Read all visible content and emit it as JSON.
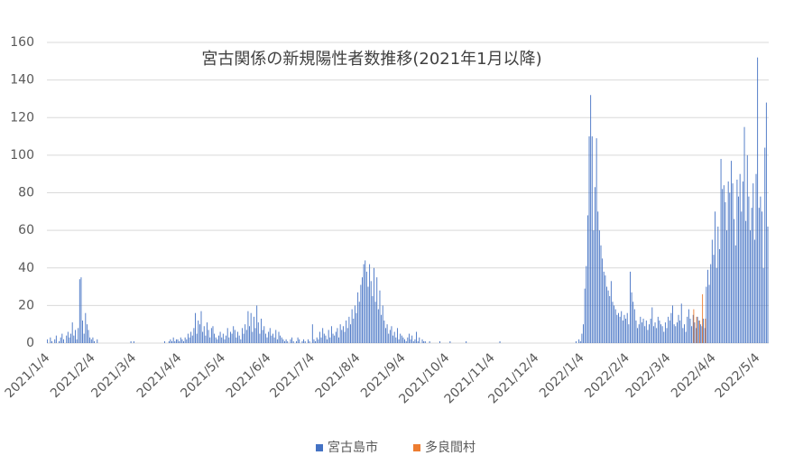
{
  "chart_data": {
    "type": "bar",
    "title": "宮古関係の新規陽性者数推移(2021年1月以降)",
    "categories": [
      "2021/1/4",
      null,
      null,
      null,
      null,
      null,
      null,
      null,
      null,
      null,
      null,
      null,
      null,
      null,
      null,
      null,
      null,
      null,
      null,
      null,
      null,
      null,
      null,
      null,
      null,
      null,
      null,
      null,
      null,
      null,
      null,
      "2021/2/4",
      null,
      null,
      null,
      null,
      null,
      null,
      null,
      null,
      null,
      null,
      null,
      null,
      null,
      null,
      null,
      null,
      null,
      null,
      null,
      null,
      null,
      null,
      null,
      null,
      null,
      null,
      null,
      "2021/3/4",
      null,
      null,
      null,
      null,
      null,
      null,
      null,
      null,
      null,
      null,
      null,
      null,
      null,
      null,
      null,
      null,
      null,
      null,
      null,
      null,
      null,
      null,
      null,
      null,
      null,
      null,
      null,
      null,
      null,
      null,
      "2021/4/4",
      null,
      null,
      null,
      null,
      null,
      null,
      null,
      null,
      null,
      null,
      null,
      null,
      null,
      null,
      null,
      null,
      null,
      null,
      null,
      null,
      null,
      null,
      null,
      null,
      null,
      null,
      null,
      null,
      null,
      "2021/5/4",
      null,
      null,
      null,
      null,
      null,
      null,
      null,
      null,
      null,
      null,
      null,
      null,
      null,
      null,
      null,
      null,
      null,
      null,
      null,
      null,
      null,
      null,
      null,
      null,
      null,
      null,
      null,
      null,
      null,
      null,
      "2021/6/4",
      null,
      null,
      null,
      null,
      null,
      null,
      null,
      null,
      null,
      null,
      null,
      null,
      null,
      null,
      null,
      null,
      null,
      null,
      null,
      null,
      null,
      null,
      null,
      null,
      null,
      null,
      null,
      null,
      null,
      "2021/7/4",
      null,
      null,
      null,
      null,
      null,
      null,
      null,
      null,
      null,
      null,
      null,
      null,
      null,
      null,
      null,
      null,
      null,
      null,
      null,
      null,
      null,
      null,
      null,
      null,
      null,
      null,
      null,
      null,
      null,
      null,
      "2021/8/4",
      null,
      null,
      null,
      null,
      null,
      null,
      null,
      null,
      null,
      null,
      null,
      null,
      null,
      null,
      null,
      null,
      null,
      null,
      null,
      null,
      null,
      null,
      null,
      null,
      null,
      null,
      null,
      null,
      null,
      null,
      "2021/9/4",
      null,
      null,
      null,
      null,
      null,
      null,
      null,
      null,
      null,
      null,
      null,
      null,
      null,
      null,
      null,
      null,
      null,
      null,
      null,
      null,
      null,
      null,
      null,
      null,
      null,
      null,
      null,
      null,
      null,
      "2021/10/4",
      null,
      null,
      null,
      null,
      null,
      null,
      null,
      null,
      null,
      null,
      null,
      null,
      null,
      null,
      null,
      null,
      null,
      null,
      null,
      null,
      null,
      null,
      null,
      null,
      null,
      null,
      null,
      null,
      null,
      null,
      "2021/11/4",
      null,
      null,
      null,
      null,
      null,
      null,
      null,
      null,
      null,
      null,
      null,
      null,
      null,
      null,
      null,
      null,
      null,
      null,
      null,
      null,
      null,
      null,
      null,
      null,
      null,
      null,
      null,
      null,
      null,
      "2021/12/4",
      null,
      null,
      null,
      null,
      null,
      null,
      null,
      null,
      null,
      null,
      null,
      null,
      null,
      null,
      null,
      null,
      null,
      null,
      null,
      null,
      null,
      null,
      null,
      null,
      null,
      null,
      null,
      null,
      null,
      null,
      "2022/1/4",
      null,
      null,
      null,
      null,
      null,
      null,
      null,
      null,
      null,
      null,
      null,
      null,
      null,
      null,
      null,
      null,
      null,
      null,
      null,
      null,
      null,
      null,
      null,
      null,
      null,
      null,
      null,
      null,
      null,
      null,
      "2022/2/4",
      null,
      null,
      null,
      null,
      null,
      null,
      null,
      null,
      null,
      null,
      null,
      null,
      null,
      null,
      null,
      null,
      null,
      null,
      null,
      null,
      null,
      null,
      null,
      null,
      null,
      null,
      null,
      "2022/3/4",
      null,
      null,
      null,
      null,
      null,
      null,
      null,
      null,
      null,
      null,
      null,
      null,
      null,
      null,
      null,
      null,
      null,
      null,
      null,
      null,
      null,
      null,
      null,
      null,
      null,
      null,
      null,
      null,
      null,
      null,
      "2022/4/4",
      null,
      null,
      null,
      null,
      null,
      null,
      null,
      null,
      null,
      null,
      null,
      null,
      null,
      null,
      null,
      null,
      null,
      null,
      null,
      null,
      null,
      null,
      null,
      null,
      null,
      null,
      null,
      null,
      null,
      "2022/5/4",
      null,
      null,
      null,
      null,
      null,
      null,
      null
    ],
    "series": [
      {
        "name": "宮古島市",
        "color": "#4472c4",
        "values": [
          2,
          0,
          3,
          1,
          0,
          2,
          4,
          0,
          1,
          3,
          5,
          2,
          0,
          4,
          6,
          3,
          5,
          11,
          4,
          7,
          2,
          8,
          34,
          35,
          12,
          5,
          16,
          10,
          7,
          3,
          2,
          3,
          1,
          0,
          2,
          0,
          0,
          0,
          0,
          0,
          0,
          0,
          0,
          0,
          0,
          0,
          0,
          0,
          0,
          0,
          0,
          0,
          0,
          0,
          0,
          0,
          0,
          1,
          0,
          1,
          0,
          0,
          0,
          0,
          0,
          0,
          0,
          0,
          0,
          0,
          0,
          0,
          0,
          0,
          0,
          0,
          0,
          0,
          0,
          0,
          1,
          0,
          0,
          1,
          2,
          1,
          3,
          1,
          2,
          2,
          1,
          3,
          2,
          1,
          3,
          2,
          5,
          3,
          6,
          4,
          8,
          16,
          5,
          12,
          10,
          17,
          6,
          9,
          4,
          11,
          7,
          3,
          8,
          9,
          5,
          3,
          2,
          4,
          6,
          3,
          5,
          2,
          4,
          8,
          3,
          6,
          5,
          9,
          7,
          3,
          6,
          4,
          2,
          8,
          5,
          10,
          7,
          17,
          9,
          16,
          6,
          14,
          8,
          20,
          11,
          5,
          13,
          7,
          9,
          5,
          3,
          6,
          8,
          4,
          5,
          3,
          7,
          2,
          6,
          4,
          3,
          2,
          1,
          2,
          1,
          0,
          2,
          3,
          1,
          0,
          1,
          3,
          2,
          0,
          1,
          2,
          1,
          0,
          2,
          1,
          0,
          10,
          2,
          1,
          3,
          2,
          6,
          3,
          8,
          5,
          4,
          2,
          7,
          3,
          9,
          5,
          4,
          6,
          8,
          3,
          10,
          7,
          9,
          6,
          12,
          8,
          14,
          10,
          18,
          13,
          20,
          16,
          27,
          22,
          31,
          35,
          42,
          44,
          38,
          30,
          42,
          33,
          25,
          40,
          22,
          35,
          18,
          28,
          15,
          20,
          12,
          8,
          10,
          5,
          7,
          9,
          4,
          6,
          3,
          8,
          2,
          5,
          4,
          3,
          2,
          1,
          3,
          5,
          2,
          4,
          1,
          2,
          6,
          1,
          3,
          0,
          2,
          1,
          1,
          0,
          0,
          1,
          0,
          0,
          0,
          0,
          0,
          0,
          1,
          0,
          0,
          0,
          0,
          0,
          0,
          1,
          0,
          0,
          0,
          0,
          0,
          0,
          0,
          0,
          0,
          0,
          1,
          0,
          0,
          0,
          0,
          0,
          0,
          0,
          0,
          0,
          0,
          0,
          0,
          0,
          0,
          0,
          0,
          0,
          0,
          0,
          0,
          0,
          0,
          1,
          0,
          0,
          0,
          0,
          0,
          0,
          0,
          0,
          0,
          0,
          0,
          0,
          0,
          0,
          0,
          0,
          0,
          0,
          0,
          0,
          0,
          0,
          0,
          0,
          0,
          0,
          0,
          0,
          0,
          0,
          0,
          0,
          0,
          0,
          0,
          0,
          0,
          0,
          0,
          0,
          0,
          0,
          0,
          0,
          0,
          0,
          0,
          0,
          0,
          0,
          0,
          1,
          0,
          2,
          1,
          5,
          10,
          29,
          41,
          68,
          110,
          132,
          110,
          60,
          83,
          109,
          70,
          60,
          52,
          45,
          38,
          36,
          30,
          28,
          25,
          33,
          22,
          20,
          18,
          15,
          16,
          14,
          17,
          12,
          15,
          13,
          16,
          10,
          38,
          27,
          22,
          18,
          12,
          8,
          10,
          14,
          11,
          13,
          9,
          12,
          7,
          10,
          13,
          19,
          9,
          11,
          8,
          14,
          12,
          10,
          9,
          6,
          11,
          8,
          14,
          12,
          16,
          20,
          10,
          9,
          11,
          15,
          12,
          21,
          8,
          10,
          6,
          14,
          18,
          13,
          9,
          15,
          11,
          8,
          14,
          12,
          10,
          9,
          13,
          8,
          30,
          39,
          31,
          42,
          55,
          47,
          70,
          40,
          62,
          50,
          98,
          82,
          84,
          75,
          60,
          86,
          80,
          97,
          85,
          66,
          52,
          87,
          78,
          90,
          70,
          86,
          115,
          65,
          100,
          78,
          60,
          72,
          85,
          55,
          90,
          152,
          72,
          78,
          70,
          40,
          104,
          128,
          62
        ]
      },
      {
        "name": "多良間村",
        "color": "#ed7d31",
        "values": [
          0,
          0,
          0,
          0,
          0,
          0,
          0,
          0,
          0,
          0,
          0,
          0,
          0,
          0,
          0,
          0,
          0,
          0,
          0,
          0,
          0,
          0,
          0,
          0,
          0,
          0,
          0,
          0,
          0,
          0,
          0,
          0,
          0,
          0,
          0,
          0,
          0,
          0,
          0,
          0,
          0,
          0,
          0,
          0,
          0,
          0,
          0,
          0,
          0,
          0,
          0,
          0,
          0,
          0,
          0,
          0,
          0,
          0,
          0,
          0,
          0,
          0,
          0,
          0,
          0,
          0,
          0,
          0,
          0,
          0,
          0,
          0,
          0,
          0,
          0,
          0,
          0,
          0,
          0,
          0,
          0,
          0,
          0,
          0,
          0,
          0,
          0,
          0,
          0,
          0,
          0,
          0,
          0,
          0,
          0,
          0,
          0,
          0,
          0,
          0,
          0,
          0,
          0,
          0,
          0,
          0,
          0,
          0,
          0,
          0,
          0,
          0,
          0,
          0,
          0,
          0,
          0,
          0,
          0,
          0,
          0,
          0,
          0,
          0,
          0,
          0,
          0,
          0,
          0,
          0,
          0,
          0,
          0,
          0,
          0,
          0,
          0,
          0,
          0,
          0,
          0,
          0,
          0,
          0,
          0,
          0,
          0,
          0,
          0,
          0,
          0,
          0,
          0,
          0,
          0,
          0,
          0,
          0,
          0,
          0,
          0,
          0,
          0,
          0,
          0,
          0,
          0,
          0,
          0,
          0,
          0,
          0,
          0,
          0,
          0,
          0,
          0,
          0,
          0,
          0,
          0,
          0,
          0,
          0,
          0,
          0,
          0,
          0,
          0,
          0,
          0,
          0,
          0,
          0,
          0,
          0,
          0,
          0,
          0,
          0,
          0,
          0,
          0,
          0,
          0,
          0,
          0,
          0,
          0,
          0,
          0,
          0,
          0,
          0,
          0,
          0,
          0,
          0,
          0,
          0,
          0,
          0,
          0,
          0,
          0,
          0,
          0,
          0,
          0,
          0,
          0,
          0,
          0,
          0,
          0,
          0,
          0,
          0,
          0,
          0,
          0,
          0,
          0,
          0,
          0,
          0,
          0,
          0,
          0,
          0,
          0,
          0,
          0,
          0,
          0,
          0,
          0,
          0,
          0,
          0,
          0,
          0,
          0,
          0,
          0,
          0,
          0,
          0,
          0,
          0,
          0,
          0,
          0,
          0,
          0,
          0,
          0,
          0,
          0,
          0,
          0,
          0,
          0,
          0,
          0,
          0,
          0,
          0,
          0,
          0,
          0,
          0,
          0,
          0,
          0,
          0,
          0,
          0,
          0,
          0,
          0,
          0,
          0,
          0,
          0,
          0,
          0,
          0,
          0,
          0,
          0,
          0,
          0,
          0,
          0,
          0,
          0,
          0,
          0,
          0,
          0,
          0,
          0,
          0,
          0,
          0,
          0,
          0,
          0,
          0,
          0,
          0,
          0,
          0,
          0,
          0,
          0,
          0,
          0,
          0,
          0,
          0,
          0,
          0,
          0,
          0,
          0,
          0,
          0,
          0,
          0,
          0,
          0,
          0,
          0,
          0,
          0,
          0,
          0,
          0,
          0,
          0,
          0,
          0,
          0,
          0,
          0,
          0,
          0,
          0,
          0,
          0,
          0,
          0,
          0,
          0,
          0,
          0,
          0,
          0,
          0,
          0,
          0,
          0,
          0,
          0,
          0,
          0,
          0,
          0,
          0,
          0,
          0,
          0,
          0,
          0,
          0,
          0,
          0,
          0,
          0,
          0,
          0,
          0,
          0,
          0,
          0,
          0,
          0,
          0,
          0,
          0,
          0,
          0,
          0,
          0,
          0,
          0,
          0,
          0,
          0,
          0,
          0,
          0,
          0,
          0,
          0,
          0,
          0,
          0,
          0,
          0,
          0,
          0,
          0,
          0,
          0,
          0,
          0,
          0,
          0,
          18,
          0,
          14,
          0,
          12,
          0,
          26,
          0,
          13,
          0,
          0,
          0,
          0,
          0,
          0,
          0,
          0,
          0,
          0,
          0,
          0,
          0,
          0,
          0,
          0,
          0,
          0,
          0,
          0,
          0,
          0,
          0,
          0,
          0,
          0,
          0,
          0,
          0,
          0,
          0,
          0,
          0,
          0,
          0,
          0,
          0,
          0,
          0,
          0,
          0,
          0,
          0
        ]
      }
    ],
    "ylim": [
      0,
      160
    ],
    "yticks": [
      0,
      20,
      40,
      60,
      80,
      100,
      120,
      140,
      160
    ],
    "grid": true,
    "legend": "bottom"
  }
}
